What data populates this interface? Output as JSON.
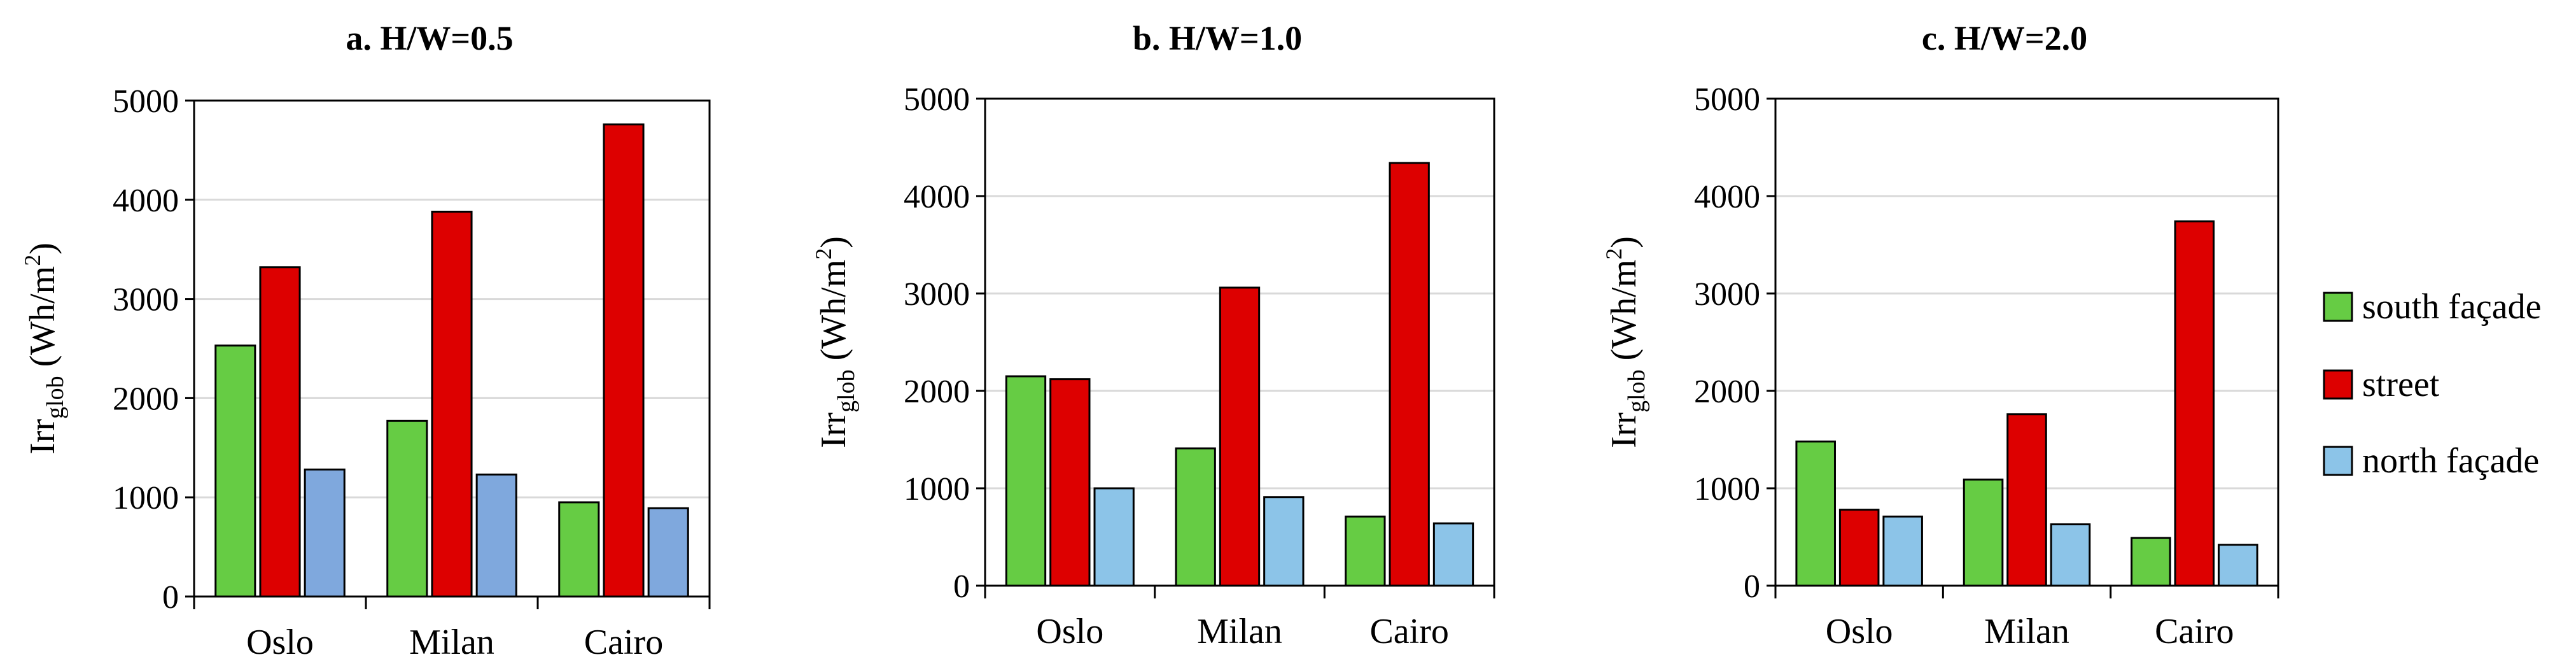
{
  "chart_data": [
    {
      "type": "bar",
      "title": "a. H/W=0.5",
      "categories": [
        "Oslo",
        "Milan",
        "Cairo"
      ],
      "ylabel": {
        "main": "Irr",
        "sub": "glob",
        "unit_pre": " (Wh/m",
        "unit_sup": "2",
        "unit_post": ")"
      },
      "ylim": [
        0,
        5000
      ],
      "yticks": [
        "0",
        "1000",
        "2000",
        "3000",
        "4000",
        "5000"
      ],
      "grid": true,
      "series": [
        {
          "key": "south",
          "values": [
            2530,
            1770,
            950
          ],
          "color": "#66CC44"
        },
        {
          "key": "street",
          "values": [
            3320,
            3880,
            4760
          ],
          "color": "#DD0000"
        },
        {
          "key": "north",
          "values": [
            1280,
            1230,
            890
          ],
          "color": "#7FA8DD"
        }
      ]
    },
    {
      "type": "bar",
      "title": "b. H/W=1.0",
      "categories": [
        "Oslo",
        "Milan",
        "Cairo"
      ],
      "ylabel": {
        "main": "Irr",
        "sub": "glob",
        "unit_pre": " (Wh/m",
        "unit_sup": "2",
        "unit_post": ")"
      },
      "ylim": [
        0,
        5000
      ],
      "yticks": [
        "0",
        "1000",
        "2000",
        "3000",
        "4000",
        "5000"
      ],
      "grid": true,
      "series": [
        {
          "key": "south",
          "values": [
            2150,
            1410,
            710
          ],
          "color": "#66CC44"
        },
        {
          "key": "street",
          "values": [
            2120,
            3060,
            4340
          ],
          "color": "#DD0000"
        },
        {
          "key": "north",
          "values": [
            1000,
            910,
            640
          ],
          "color": "#8CC4E8"
        }
      ]
    },
    {
      "type": "bar",
      "title": "c. H/W=2.0",
      "categories": [
        "Oslo",
        "Milan",
        "Cairo"
      ],
      "ylabel": {
        "main": "Irr",
        "sub": "glob",
        "unit_pre": " (Wh/m",
        "unit_sup": "2",
        "unit_post": ")"
      },
      "ylim": [
        0,
        5000
      ],
      "yticks": [
        "0",
        "1000",
        "2000",
        "3000",
        "4000",
        "5000"
      ],
      "grid": true,
      "series": [
        {
          "key": "south",
          "values": [
            1480,
            1090,
            490
          ],
          "color": "#66CC44"
        },
        {
          "key": "street",
          "values": [
            780,
            1760,
            3740
          ],
          "color": "#DD0000"
        },
        {
          "key": "north",
          "values": [
            710,
            630,
            420
          ],
          "color": "#8CC4E8"
        }
      ]
    }
  ],
  "legend": {
    "placement": "right",
    "items": [
      {
        "label": "south façade",
        "color": "#66CC44"
      },
      {
        "label": "street",
        "color": "#DD0000"
      },
      {
        "label": "north façade",
        "color": "#8CC4E8"
      }
    ]
  }
}
